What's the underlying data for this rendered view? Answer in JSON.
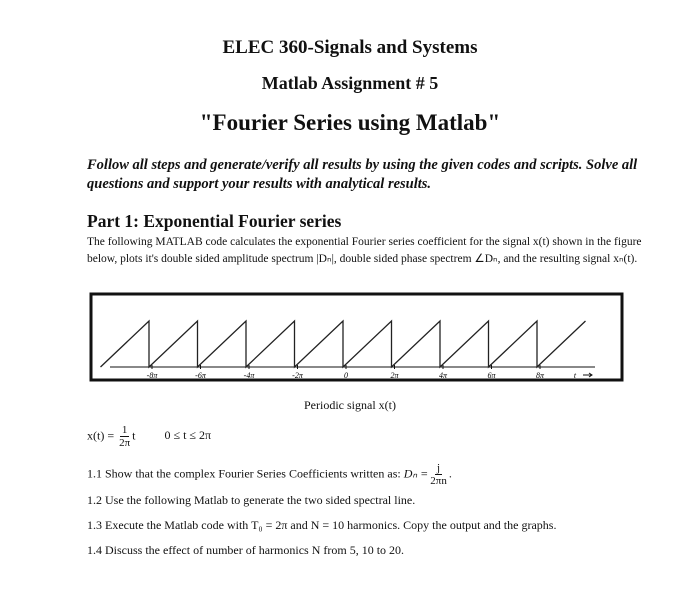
{
  "header": {
    "title": "ELEC 360-Signals and Systems",
    "subtitle": "Matlab Assignment # 5",
    "heading": "\"Fourier Series using Matlab\""
  },
  "intro": "Follow all steps and generate/verify all results by using the given codes and scripts. Solve all questions and support your results with analytical results.",
  "part1": {
    "title": "Part 1: Exponential Fourier series",
    "text": "The following MATLAB code calculates the exponential Fourier series coefficient for the signal x(t) shown in the figure below, plots it's double sided amplitude spectrum |Dₙ|, double sided phase spectrem ∠Dₙ, and the resulting signal xₙ(t)."
  },
  "figure": {
    "tick_labels": [
      "-8π",
      "-6π",
      "-4π",
      "-2π",
      "0",
      "2π",
      "4π",
      "6π",
      "8π",
      "t"
    ],
    "caption": "Periodic signal x(t)"
  },
  "equation": {
    "lhs": "x(t) =",
    "numerator": "1",
    "denominator": "2π",
    "variable": "t",
    "range": "0 ≤ t ≤ 2π"
  },
  "questions": [
    {
      "text": "1.1 Show that the complex Fourier Series Coefficients written as:",
      "lhs": "Dₙ =",
      "numerator": "j",
      "denominator": "2πn",
      "end": "."
    },
    {
      "text": "1.2 Use the following Matlab to generate the two sided spectral line."
    },
    {
      "text": "1.3 Execute the Matlab code with T₀ = 2π and N = 10 harmonics. Copy the output and the graphs."
    },
    {
      "text": "1.4 Discuss the effect of number of harmonics N from 5, 10 to 20."
    }
  ]
}
